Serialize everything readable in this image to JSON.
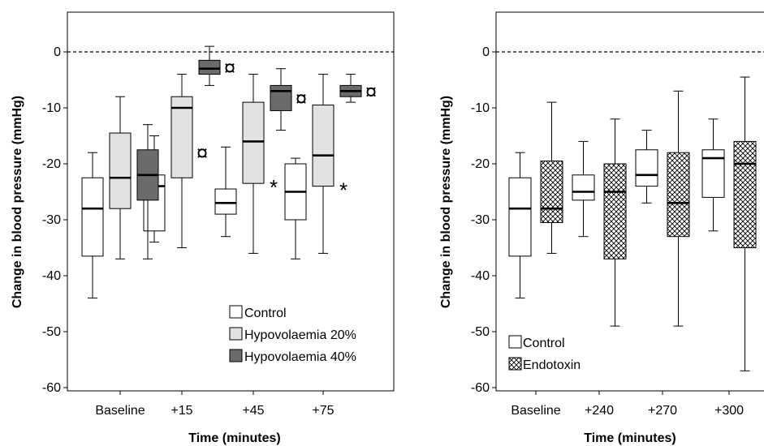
{
  "chart_data": [
    {
      "type": "boxplot",
      "xlabel": "Time (minutes)",
      "ylabel": "Change in blood pressure (mmHg)",
      "ylim": [
        -60,
        7
      ],
      "yticks": [
        0,
        -10,
        -20,
        -30,
        -40,
        -50,
        -60
      ],
      "reference_line": 0,
      "grid": false,
      "legend_placement": "bottom-right",
      "categories": [
        "Baseline",
        "+15",
        "+45",
        "+75"
      ],
      "series": [
        {
          "name": "Control",
          "color": "#ffffff",
          "pattern": "none",
          "boxes": [
            {
              "min": -44,
              "q1": -36.5,
              "median": -28,
              "q3": -22.5,
              "max": -18
            },
            {
              "min": -34,
              "q1": -32,
              "median": -24,
              "q3": -22,
              "max": -15
            },
            {
              "min": -33,
              "q1": -29,
              "median": -27,
              "q3": -24.5,
              "max": -17
            },
            {
              "min": -37,
              "q1": -30,
              "median": -25,
              "q3": -20,
              "max": -19
            }
          ],
          "markers": [
            "",
            "",
            "",
            ""
          ]
        },
        {
          "name": "Hypovolaemia 20%",
          "color": "#e2e2e2",
          "pattern": "none",
          "boxes": [
            {
              "min": -37,
              "q1": -28,
              "median": -22.5,
              "q3": -14.5,
              "max": -8
            },
            {
              "min": -35,
              "q1": -22.5,
              "median": -10,
              "q3": -8,
              "max": -4
            },
            {
              "min": -36,
              "q1": -23.5,
              "median": -16,
              "q3": -9,
              "max": -4
            },
            {
              "min": -36,
              "q1": -24,
              "median": -18.5,
              "q3": -9.5,
              "max": -4
            }
          ],
          "markers": [
            "",
            "¤",
            "*",
            "*"
          ]
        },
        {
          "name": "Hypovolaemia 40%",
          "color": "#6b6b6b",
          "pattern": "none",
          "boxes": [
            {
              "min": -37,
              "q1": -26.5,
              "median": -22,
              "q3": -17.5,
              "max": -13
            },
            {
              "min": -6,
              "q1": -4,
              "median": -3,
              "q3": -1.5,
              "max": 1
            },
            {
              "min": -14,
              "q1": -10.5,
              "median": -7,
              "q3": -6,
              "max": -3
            },
            {
              "min": -9,
              "q1": -8,
              "median": -7,
              "q3": -6,
              "max": -4
            }
          ],
          "markers": [
            "",
            "¤",
            "¤",
            "¤"
          ]
        }
      ]
    },
    {
      "type": "boxplot",
      "xlabel": "Time (minutes)",
      "ylabel": "Change in blood pressure (mmHg)",
      "ylim": [
        -60,
        7
      ],
      "yticks": [
        0,
        -10,
        -20,
        -30,
        -40,
        -50,
        -60
      ],
      "reference_line": 0,
      "grid": false,
      "legend_placement": "bottom-left",
      "categories": [
        "Baseline",
        "+240",
        "+270",
        "+300"
      ],
      "series": [
        {
          "name": "Control",
          "color": "#ffffff",
          "pattern": "none",
          "boxes": [
            {
              "min": -44,
              "q1": -36.5,
              "median": -28,
              "q3": -22.5,
              "max": -18
            },
            {
              "min": -33,
              "q1": -26.5,
              "median": -25,
              "q3": -22,
              "max": -16
            },
            {
              "min": -27,
              "q1": -24,
              "median": -22,
              "q3": -17.5,
              "max": -14
            },
            {
              "min": -32,
              "q1": -26,
              "median": -19,
              "q3": -17.5,
              "max": -12
            }
          ],
          "markers": [
            "",
            "",
            "",
            ""
          ]
        },
        {
          "name": "Endotoxin",
          "color": "#ffffff",
          "pattern": "crosshatch",
          "boxes": [
            {
              "min": -36,
              "q1": -30.5,
              "median": -28,
              "q3": -19.5,
              "max": -9
            },
            {
              "min": -49,
              "q1": -37,
              "median": -25,
              "q3": -20,
              "max": -12
            },
            {
              "min": -49,
              "q1": -33,
              "median": -27,
              "q3": -18,
              "max": -7
            },
            {
              "min": -57,
              "q1": -35,
              "median": -20,
              "q3": -16,
              "max": -4.5
            }
          ],
          "markers": [
            "",
            "",
            "",
            ""
          ]
        }
      ]
    }
  ]
}
